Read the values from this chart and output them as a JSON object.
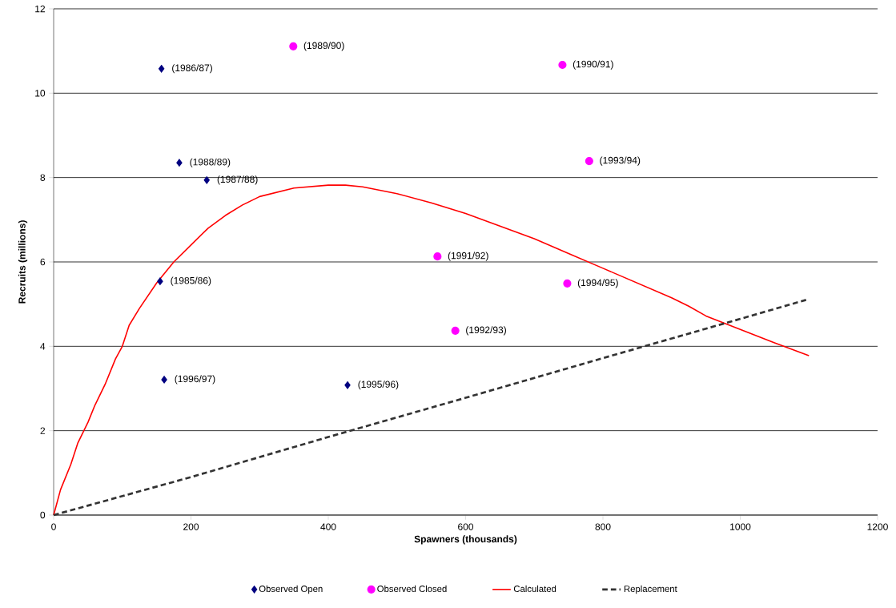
{
  "chart_data": {
    "type": "scatter",
    "xlabel": "Spawners (thousands)",
    "ylabel": "Recruits (millions)",
    "xlim": [
      0,
      1200
    ],
    "xticks": [
      0,
      200,
      400,
      600,
      800,
      1000,
      1200
    ],
    "ylim": [
      0,
      12
    ],
    "yticks": [
      0,
      2,
      4,
      6,
      8,
      10,
      12
    ],
    "grid": "y",
    "legend": "bottom",
    "series": [
      {
        "name": "Observed Open",
        "color": "#000080",
        "marker": "diamond",
        "x": [
          155,
          183,
          223,
          161,
          157,
          428
        ],
        "values": [
          5.54,
          8.35,
          7.94,
          3.21,
          10.58,
          3.08
        ]
      },
      {
        "name": "Observed Closed",
        "color": "#ff00ff",
        "marker": "circle",
        "x": [
          349,
          741,
          780,
          559,
          748,
          585
        ],
        "values": [
          11.11,
          10.67,
          8.39,
          6.13,
          5.49,
          4.37
        ]
      },
      {
        "name": "Calculated",
        "type": "line",
        "color": "#ff0000",
        "line_style": "solid",
        "x": [
          0,
          10,
          25,
          35,
          50,
          60,
          75,
          90,
          100,
          110,
          125,
          150,
          175,
          200,
          225,
          250,
          275,
          300,
          350,
          400,
          425,
          450,
          500,
          550,
          600,
          650,
          700,
          750,
          800,
          850,
          900,
          925,
          950,
          1000,
          1050,
          1100
        ],
        "values": [
          0,
          0.6,
          1.2,
          1.7,
          2.2,
          2.6,
          3.1,
          3.7,
          4.0,
          4.5,
          4.9,
          5.5,
          6.0,
          6.4,
          6.8,
          7.1,
          7.35,
          7.55,
          7.75,
          7.82,
          7.82,
          7.78,
          7.62,
          7.4,
          7.15,
          6.85,
          6.55,
          6.2,
          5.85,
          5.5,
          5.15,
          4.95,
          4.72,
          4.4,
          4.08,
          3.78
        ]
      },
      {
        "name": "Replacement",
        "type": "line",
        "color": "#333333",
        "line_style": "dashed",
        "x": [
          0,
          200,
          400,
          600,
          800,
          1000,
          1100
        ],
        "values": [
          0,
          0.9,
          1.85,
          2.78,
          3.72,
          4.65,
          5.12
        ]
      }
    ],
    "annotations": [
      {
        "text": "(1985/86)",
        "x": 155,
        "y": 5.54
      },
      {
        "text": "(1988/89)",
        "x": 183,
        "y": 8.35
      },
      {
        "text": "(1987/88)",
        "x": 223,
        "y": 7.94
      },
      {
        "text": "(1996/97)",
        "x": 161,
        "y": 3.21
      },
      {
        "text": "(1986/87)",
        "x": 157,
        "y": 10.58
      },
      {
        "text": "(1995/96)",
        "x": 428,
        "y": 3.08
      },
      {
        "text": "(1989/90)",
        "x": 349,
        "y": 11.11
      },
      {
        "text": "(1990/91)",
        "x": 741,
        "y": 10.67
      },
      {
        "text": "(1993/94)",
        "x": 780,
        "y": 8.39
      },
      {
        "text": "(1991/92)",
        "x": 559,
        "y": 6.13
      },
      {
        "text": "(1994/95)",
        "x": 748,
        "y": 5.49
      },
      {
        "text": "(1992/93)",
        "x": 585,
        "y": 4.37
      }
    ]
  }
}
